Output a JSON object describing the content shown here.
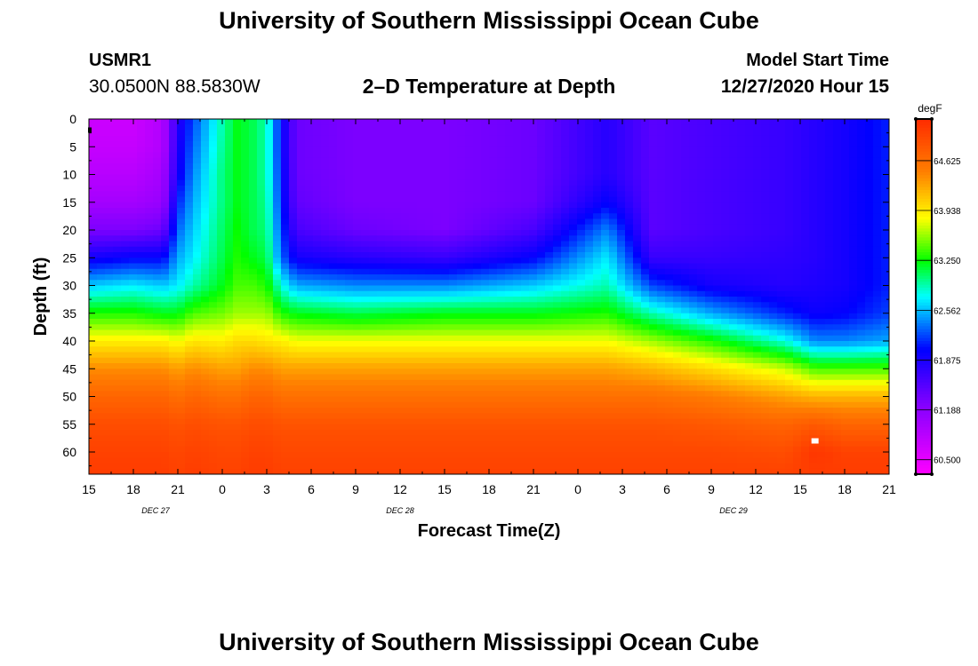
{
  "header": {
    "title_top": "University of Southern Mississippi Ocean Cube",
    "title_bottom": "University of Southern Mississippi Ocean Cube",
    "station_id": "USMR1",
    "station_location": "30.0500N 88.5830W",
    "subtitle": "2–D Temperature at Depth",
    "model_start_label": "Model Start Time",
    "model_start_time": "12/27/2020 Hour 15"
  },
  "chart_data": {
    "type": "heatmap",
    "title": "2–D Temperature at Depth",
    "xlabel": "Forecast Time(Z)",
    "ylabel": "Depth (ft)",
    "x_unit": "hours since model start",
    "x_range": [
      0,
      54
    ],
    "y_range": [
      0,
      64
    ],
    "y_inverted": true,
    "x_tick_labels": [
      "15",
      "18",
      "21",
      "0",
      "3",
      "6",
      "9",
      "12",
      "15",
      "18",
      "21",
      "0",
      "3",
      "6",
      "9",
      "12",
      "15",
      "18",
      "21"
    ],
    "date_labels": [
      {
        "text": "DEC 27",
        "hour": 4.5
      },
      {
        "text": "DEC 28",
        "hour": 21
      },
      {
        "text": "DEC 29",
        "hour": 43.5
      }
    ],
    "y_ticks": [
      0,
      5,
      10,
      15,
      20,
      25,
      30,
      35,
      40,
      45,
      50,
      55,
      60
    ],
    "colorbar": {
      "unit": "degF",
      "min": 60.3,
      "max": 65.2,
      "labels": [
        60.5,
        61.188,
        61.875,
        62.562,
        63.25,
        63.938,
        64.625
      ],
      "label_text": [
        "60.500",
        "61.188",
        "61.875",
        "62.562",
        "63.250",
        "63.938",
        "64.625"
      ]
    },
    "series": [
      {
        "hour": 0,
        "t": [
          60.7,
          60.75,
          60.85,
          61.0,
          61.3,
          61.9,
          62.6,
          63.3,
          63.9,
          64.4,
          64.7,
          64.9,
          65.0,
          65.05
        ]
      },
      {
        "hour": 3,
        "t": [
          60.7,
          60.75,
          60.85,
          61.0,
          61.3,
          62.0,
          62.7,
          63.3,
          63.9,
          64.4,
          64.7,
          64.9,
          65.0,
          65.05
        ]
      },
      {
        "hour": 5,
        "t": [
          60.9,
          60.9,
          61.0,
          61.1,
          61.4,
          62.0,
          62.6,
          63.2,
          63.9,
          64.4,
          64.7,
          64.9,
          65.0,
          65.05
        ]
      },
      {
        "hour": 6,
        "t": [
          61.8,
          61.85,
          61.9,
          62.1,
          62.3,
          62.5,
          62.7,
          63.2,
          63.8,
          64.3,
          64.6,
          64.85,
          64.95,
          65.0
        ]
      },
      {
        "hour": 7,
        "t": [
          62.2,
          62.3,
          62.4,
          62.5,
          62.6,
          62.7,
          62.9,
          63.4,
          63.95,
          64.4,
          64.7,
          64.9,
          65.0,
          65.05
        ]
      },
      {
        "hour": 9,
        "t": [
          62.9,
          62.95,
          63.0,
          63.0,
          63.05,
          63.1,
          63.2,
          63.5,
          63.9,
          64.3,
          64.6,
          64.85,
          64.95,
          65.0
        ]
      },
      {
        "hour": 10,
        "t": [
          63.2,
          63.2,
          63.2,
          63.2,
          63.25,
          63.3,
          63.4,
          63.6,
          64.0,
          64.3,
          64.6,
          64.85,
          64.95,
          65.0
        ]
      },
      {
        "hour": 11,
        "t": [
          63.1,
          63.1,
          63.1,
          63.1,
          63.1,
          63.2,
          63.4,
          63.6,
          64.0,
          64.4,
          64.7,
          64.9,
          65.0,
          65.05
        ]
      },
      {
        "hour": 12,
        "t": [
          62.9,
          62.9,
          62.9,
          62.95,
          63.0,
          63.1,
          63.3,
          63.6,
          63.95,
          64.4,
          64.7,
          64.9,
          65.0,
          65.05
        ]
      },
      {
        "hour": 13,
        "t": [
          62.0,
          62.0,
          62.05,
          62.1,
          62.2,
          62.3,
          62.8,
          63.3,
          63.9,
          64.3,
          64.6,
          64.85,
          64.95,
          65.0
        ]
      },
      {
        "hour": 14,
        "t": [
          61.4,
          61.4,
          61.4,
          61.45,
          61.6,
          61.9,
          62.5,
          63.2,
          63.8,
          64.3,
          64.6,
          64.85,
          64.95,
          65.0
        ]
      },
      {
        "hour": 18,
        "t": [
          61.3,
          61.3,
          61.3,
          61.3,
          61.4,
          61.8,
          62.4,
          63.1,
          63.8,
          64.3,
          64.6,
          64.85,
          64.95,
          65.0
        ]
      },
      {
        "hour": 24,
        "t": [
          61.3,
          61.3,
          61.3,
          61.3,
          61.3,
          61.7,
          62.4,
          63.2,
          63.8,
          64.3,
          64.6,
          64.85,
          64.95,
          65.0
        ]
      },
      {
        "hour": 30,
        "t": [
          61.4,
          61.4,
          61.4,
          61.4,
          61.6,
          62.0,
          62.6,
          63.2,
          63.8,
          64.3,
          64.6,
          64.85,
          64.95,
          65.0
        ]
      },
      {
        "hour": 35,
        "t": [
          61.8,
          61.8,
          61.8,
          62.0,
          62.4,
          62.7,
          62.9,
          63.3,
          63.8,
          64.3,
          64.6,
          64.85,
          64.95,
          65.0
        ]
      },
      {
        "hour": 38,
        "t": [
          61.5,
          61.5,
          61.5,
          61.5,
          61.5,
          61.7,
          62.2,
          62.9,
          63.6,
          64.2,
          64.6,
          64.85,
          64.95,
          65.0
        ]
      },
      {
        "hour": 42,
        "t": [
          61.6,
          61.6,
          61.6,
          61.6,
          61.6,
          61.7,
          61.9,
          62.5,
          63.3,
          64.0,
          64.5,
          64.8,
          64.95,
          65.0
        ]
      },
      {
        "hour": 47,
        "t": [
          61.7,
          61.7,
          61.7,
          61.7,
          61.7,
          61.75,
          61.8,
          62.1,
          62.8,
          63.7,
          64.3,
          64.7,
          64.9,
          65.0
        ]
      },
      {
        "hour": 49,
        "t": [
          61.8,
          61.8,
          61.8,
          61.8,
          61.8,
          61.8,
          61.85,
          61.95,
          62.4,
          63.4,
          64.2,
          64.8,
          65.1,
          65.05
        ]
      },
      {
        "hour": 51,
        "t": [
          61.9,
          61.9,
          61.9,
          61.9,
          61.9,
          61.9,
          61.9,
          62.0,
          62.4,
          63.4,
          64.2,
          64.7,
          65.0,
          65.05
        ]
      },
      {
        "hour": 54,
        "t": [
          62.1,
          62.1,
          62.1,
          62.1,
          62.1,
          62.1,
          62.1,
          62.2,
          62.5,
          63.4,
          64.2,
          64.7,
          65.0,
          65.05
        ]
      }
    ],
    "depth_levels": [
      0,
      5,
      10,
      15,
      20,
      25,
      30,
      35,
      40,
      45,
      50,
      55,
      60,
      64
    ]
  }
}
